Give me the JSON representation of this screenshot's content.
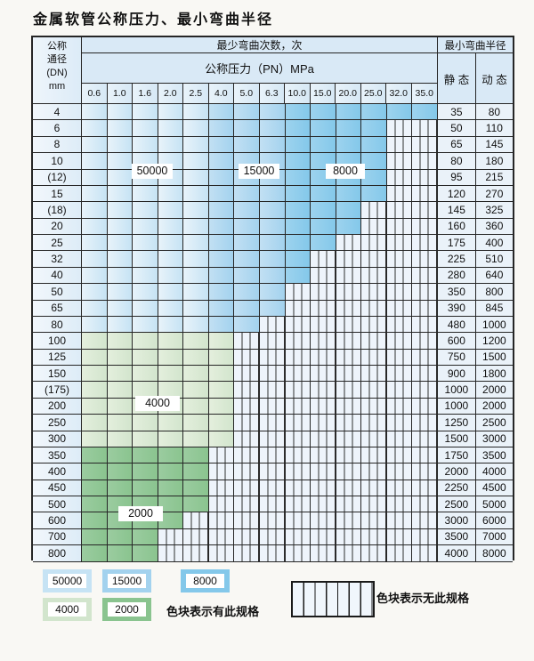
{
  "title": "金属软管公称压力、最小弯曲半径",
  "table": {
    "corner_header": {
      "line1": "公称",
      "line2": "通径",
      "line3": "(DN)",
      "line4": "mm"
    },
    "cycles_header": "最少弯曲次数，次",
    "pressure_header": "公称压力（PN）MPa",
    "pn_values": [
      "0.6",
      "1.0",
      "1.6",
      "2.0",
      "2.5",
      "4.0",
      "5.0",
      "6.3",
      "10.0",
      "15.0",
      "20.0",
      "25.0",
      "32.0",
      "35.0"
    ],
    "radius_header": "最小弯曲半径",
    "static_header": "静 态",
    "dynamic_header": "动 态",
    "cell_code_meaning": {
      "A": "50000次",
      "B": "15000次",
      "C": "8000次",
      "D": "4000次",
      "E": "2000次",
      "X": "无此规格"
    },
    "rows": [
      {
        "dn": "4",
        "cells": "AAAAABBBCCCCCC",
        "static": "35",
        "dynamic": "80"
      },
      {
        "dn": "6",
        "cells": "AAAAABBBCCCCXX",
        "static": "50",
        "dynamic": "110"
      },
      {
        "dn": "8",
        "cells": "AAAAABBBCCCCXX",
        "static": "65",
        "dynamic": "145"
      },
      {
        "dn": "10",
        "cells": "AAAAABBBCCCCXX",
        "static": "80",
        "dynamic": "180"
      },
      {
        "dn": "(12)",
        "cells": "AAAAABBBCCCCXX",
        "static": "95",
        "dynamic": "215"
      },
      {
        "dn": "15",
        "cells": "AAAAABBBCCCCXX",
        "static": "120",
        "dynamic": "270"
      },
      {
        "dn": "(18)",
        "cells": "AAAAABBBCCCXXX",
        "static": "145",
        "dynamic": "325"
      },
      {
        "dn": "20",
        "cells": "AAAAABBBCCCXXX",
        "static": "160",
        "dynamic": "360"
      },
      {
        "dn": "25",
        "cells": "AAAAABBBCCXXXX",
        "static": "175",
        "dynamic": "400"
      },
      {
        "dn": "32",
        "cells": "AAAAABBBCXXXXX",
        "static": "225",
        "dynamic": "510"
      },
      {
        "dn": "40",
        "cells": "AAAAABBBCXXXXX",
        "static": "280",
        "dynamic": "640"
      },
      {
        "dn": "50",
        "cells": "AAAAABBBXXXXXX",
        "static": "350",
        "dynamic": "800"
      },
      {
        "dn": "65",
        "cells": "AAAAABBBXXXXXX",
        "static": "390",
        "dynamic": "845"
      },
      {
        "dn": "80",
        "cells": "AAAAABBXXXXXXX",
        "static": "480",
        "dynamic": "1000"
      },
      {
        "dn": "100",
        "cells": "DDDDDDXXXXXXXX",
        "static": "600",
        "dynamic": "1200"
      },
      {
        "dn": "125",
        "cells": "DDDDDDXXXXXXXX",
        "static": "750",
        "dynamic": "1500"
      },
      {
        "dn": "150",
        "cells": "DDDDDDXXXXXXXX",
        "static": "900",
        "dynamic": "1800"
      },
      {
        "dn": "(175)",
        "cells": "DDDDDDXXXXXXXX",
        "static": "1000",
        "dynamic": "2000"
      },
      {
        "dn": "200",
        "cells": "DDDDDDXXXXXXXX",
        "static": "1000",
        "dynamic": "2000"
      },
      {
        "dn": "250",
        "cells": "DDDDDDXXXXXXXX",
        "static": "1250",
        "dynamic": "2500"
      },
      {
        "dn": "300",
        "cells": "DDDDDDXXXXXXXX",
        "static": "1500",
        "dynamic": "3000"
      },
      {
        "dn": "350",
        "cells": "EEEEEXXXXXXXXX",
        "static": "1750",
        "dynamic": "3500"
      },
      {
        "dn": "400",
        "cells": "EEEEEXXXXXXXXX",
        "static": "2000",
        "dynamic": "4000"
      },
      {
        "dn": "450",
        "cells": "EEEEEXXXXXXXXX",
        "static": "2250",
        "dynamic": "4500"
      },
      {
        "dn": "500",
        "cells": "EEEEEXXXXXXXXX",
        "static": "2500",
        "dynamic": "5000"
      },
      {
        "dn": "600",
        "cells": "EEEEXXXXXXXXXX",
        "static": "3000",
        "dynamic": "6000"
      },
      {
        "dn": "700",
        "cells": "EEEXXXXXXXXXXX",
        "static": "3500",
        "dynamic": "7000"
      },
      {
        "dn": "800",
        "cells": "EEEXXXXXXXXXXX",
        "static": "4000",
        "dynamic": "8000"
      }
    ]
  },
  "region_labels": [
    {
      "text": "50000"
    },
    {
      "text": "15000"
    },
    {
      "text": "8000"
    },
    {
      "text": "4000"
    },
    {
      "text": "2000"
    }
  ],
  "legend": {
    "swatches": [
      {
        "label": "50000",
        "code": "A",
        "color": "#c6e3f4"
      },
      {
        "label": "15000",
        "code": "B",
        "color": "#a3d2ee"
      },
      {
        "label": "8000",
        "code": "C",
        "color": "#84c8ea"
      },
      {
        "label": "4000",
        "code": "D",
        "color": "#d2e5cd"
      },
      {
        "label": "2000",
        "code": "E",
        "color": "#8ac48f"
      }
    ],
    "has_spec_note": "色块表示有此规格",
    "no_spec_note": "色块表示无此规格"
  },
  "colors": {
    "cycles_50000": "#c6e3f4",
    "cycles_15000": "#a3d2ee",
    "cycles_8000": "#84c8ea",
    "cycles_4000": "#d2e5cd",
    "cycles_2000": "#8ac48f",
    "no_spec_bg": "#eef4fb",
    "header_bg": "#d9e9f6",
    "grid_line": "#262626",
    "page_bg": "#f9f8f4"
  }
}
